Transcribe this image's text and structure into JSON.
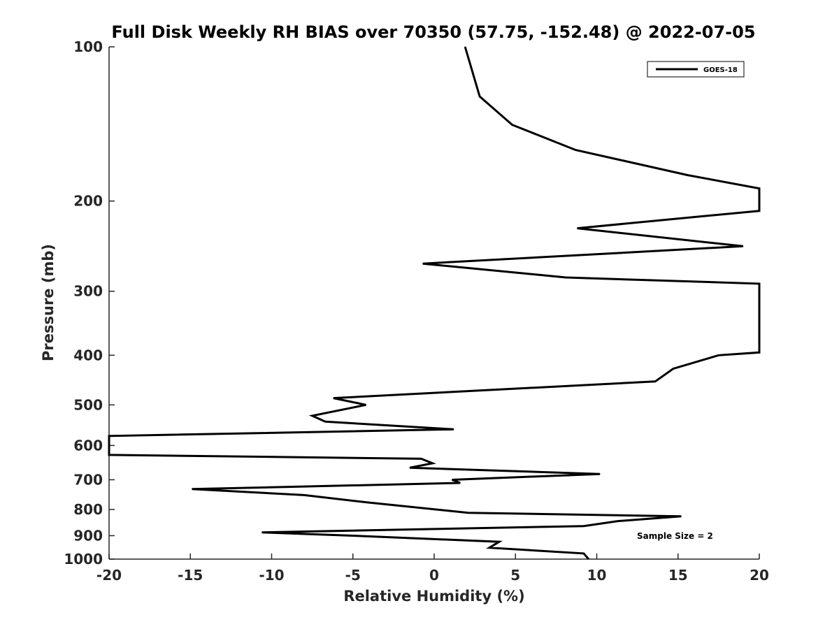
{
  "chart_data": {
    "type": "line",
    "title": "Full Disk Weekly RH BIAS over 70350 (57.75, -152.48) @ 2022-07-05",
    "xlabel": "Relative Humidity (%)",
    "ylabel": "Pressure (mb)",
    "xlim": [
      -20,
      20
    ],
    "ylim": [
      100,
      1000
    ],
    "yscale": "log",
    "y_reversed": true,
    "grid": false,
    "x_ticks": [
      -20,
      -15,
      -10,
      -5,
      0,
      5,
      10,
      15,
      20
    ],
    "x_tick_labels": [
      "-20",
      "-15",
      "-10",
      "-5",
      "0",
      "5",
      "10",
      "15",
      "20"
    ],
    "y_ticks": [
      100,
      200,
      300,
      400,
      500,
      600,
      700,
      800,
      900,
      1000
    ],
    "y_tick_labels": [
      "100",
      "200",
      "300",
      "400",
      "500",
      "600",
      "700",
      "800",
      "900",
      "1000"
    ],
    "legend": {
      "position": "top-right",
      "entries": [
        "GOES-18"
      ]
    },
    "annotation": "Sample Size = 2",
    "series": [
      {
        "name": "GOES-18",
        "color": "#000000",
        "points": [
          {
            "x": 9.5,
            "y": 1000
          },
          {
            "x": 9.2,
            "y": 975
          },
          {
            "x": 3.4,
            "y": 950
          },
          {
            "x": 4.0,
            "y": 925
          },
          {
            "x": -5.0,
            "y": 900
          },
          {
            "x": -10.6,
            "y": 887
          },
          {
            "x": 9.2,
            "y": 862
          },
          {
            "x": 11.3,
            "y": 843
          },
          {
            "x": 15.2,
            "y": 825
          },
          {
            "x": 2.1,
            "y": 812
          },
          {
            "x": -4.1,
            "y": 775
          },
          {
            "x": -8.0,
            "y": 750
          },
          {
            "x": -14.9,
            "y": 730
          },
          {
            "x": 1.6,
            "y": 710
          },
          {
            "x": 1.1,
            "y": 700
          },
          {
            "x": 10.2,
            "y": 682
          },
          {
            "x": -1.5,
            "y": 663
          },
          {
            "x": -0.1,
            "y": 650
          },
          {
            "x": -0.8,
            "y": 637
          },
          {
            "x": -20.0,
            "y": 626
          },
          {
            "x": -20.0,
            "y": 575
          },
          {
            "x": 1.2,
            "y": 558
          },
          {
            "x": -6.7,
            "y": 539
          },
          {
            "x": -7.5,
            "y": 525
          },
          {
            "x": -4.2,
            "y": 500
          },
          {
            "x": -6.2,
            "y": 485
          },
          {
            "x": 13.6,
            "y": 450
          },
          {
            "x": 14.7,
            "y": 425
          },
          {
            "x": 17.5,
            "y": 400
          },
          {
            "x": 20.0,
            "y": 395
          },
          {
            "x": 20.0,
            "y": 290
          },
          {
            "x": 8.1,
            "y": 282
          },
          {
            "x": -0.7,
            "y": 265
          },
          {
            "x": 19.0,
            "y": 245
          },
          {
            "x": 8.8,
            "y": 226
          },
          {
            "x": 20.0,
            "y": 209
          },
          {
            "x": 20.0,
            "y": 189
          },
          {
            "x": 15.6,
            "y": 178
          },
          {
            "x": 8.7,
            "y": 159
          },
          {
            "x": 4.8,
            "y": 142
          },
          {
            "x": 2.8,
            "y": 125
          },
          {
            "x": 1.9,
            "y": 100
          }
        ]
      }
    ]
  }
}
